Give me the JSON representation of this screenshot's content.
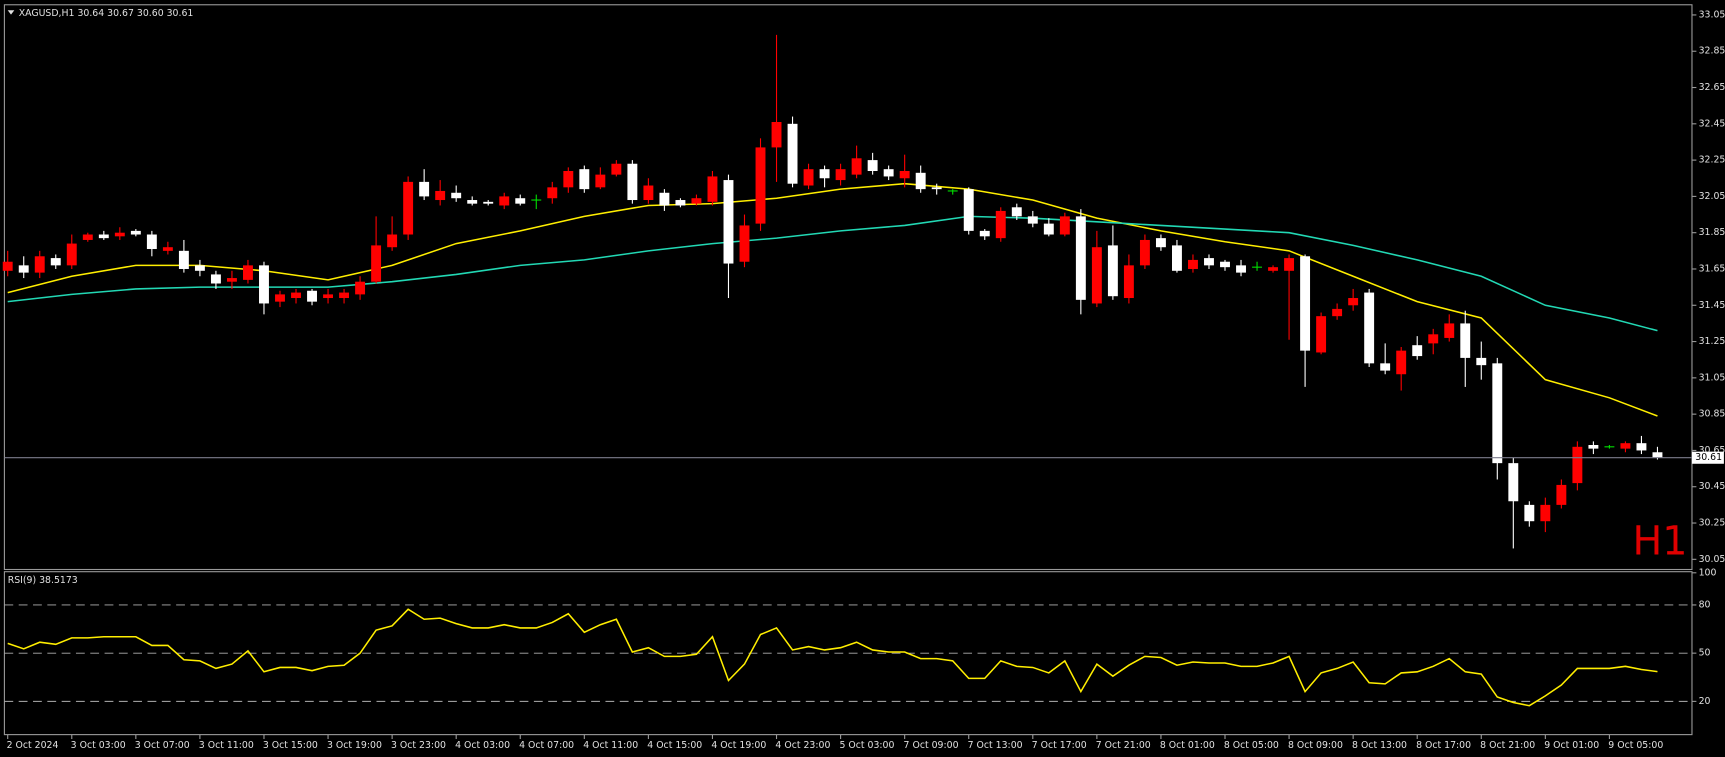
{
  "chart_data": {
    "type": "candlestick",
    "title": "XAGUSD,H1 30.64 30.67 30.60 30.61",
    "timeframe_label": "H1",
    "categories": [
      "2 Oct 2024",
      null,
      null,
      null,
      "3 Oct 03:00",
      null,
      null,
      null,
      "3 Oct 07:00",
      null,
      null,
      null,
      "3 Oct 11:00",
      null,
      null,
      null,
      "3 Oct 15:00",
      null,
      null,
      null,
      "3 Oct 19:00",
      null,
      null,
      null,
      "3 Oct 23:00",
      null,
      null,
      null,
      "4 Oct 03:00",
      null,
      null,
      null,
      "4 Oct 07:00",
      null,
      null,
      null,
      "4 Oct 11:00",
      null,
      null,
      null,
      "4 Oct 15:00",
      null,
      null,
      null,
      "4 Oct 19:00",
      null,
      null,
      null,
      "4 Oct 23:00",
      null,
      null,
      null,
      "5 Oct 03:00",
      null,
      null,
      null,
      "7 Oct 09:00",
      null,
      null,
      null,
      "7 Oct 13:00",
      null,
      null,
      null,
      "7 Oct 17:00",
      null,
      null,
      null,
      "7 Oct 21:00",
      null,
      null,
      null,
      "8 Oct 01:00",
      null,
      null,
      null,
      "8 Oct 05:00",
      null,
      null,
      null,
      "8 Oct 09:00",
      null,
      null,
      null,
      "8 Oct 13:00",
      null,
      null,
      null,
      "8 Oct 17:00",
      null,
      null,
      null,
      "8 Oct 21:00",
      null,
      null,
      null,
      "9 Oct 01:00",
      null,
      null,
      null,
      "9 Oct 05:00",
      null,
      null,
      null
    ],
    "open": [
      31.64,
      31.67,
      31.63,
      31.71,
      31.67,
      31.81,
      31.84,
      31.83,
      31.86,
      31.84,
      31.75,
      31.75,
      31.67,
      31.62,
      31.58,
      31.59,
      31.67,
      31.47,
      31.49,
      31.53,
      31.49,
      31.49,
      31.51,
      31.58,
      31.77,
      31.84,
      32.13,
      32.03,
      32.07,
      32.03,
      32.02,
      32.0,
      32.04,
      32.03,
      32.04,
      32.1,
      32.2,
      32.1,
      32.17,
      32.23,
      32.03,
      32.07,
      32.03,
      32.01,
      32.02,
      32.14,
      31.69,
      31.9,
      32.32,
      32.45,
      32.11,
      32.2,
      32.14,
      32.17,
      32.25,
      32.2,
      32.15,
      32.18,
      32.1,
      32.08,
      32.09,
      31.86,
      31.82,
      31.99,
      31.94,
      31.9,
      31.84,
      31.94,
      31.46,
      31.78,
      31.49,
      31.67,
      31.82,
      31.78,
      31.65,
      31.71,
      31.69,
      31.67,
      31.66,
      31.64,
      31.64,
      31.72,
      31.19,
      31.39,
      31.45,
      31.52,
      31.13,
      31.07,
      31.23,
      31.24,
      31.27,
      31.35,
      31.16,
      31.13,
      30.58,
      30.35,
      30.26,
      30.35,
      30.47,
      30.68,
      30.67,
      30.66,
      30.69,
      30.64
    ],
    "high": [
      31.75,
      31.72,
      31.75,
      31.73,
      31.84,
      31.85,
      31.86,
      31.88,
      31.87,
      31.86,
      31.8,
      31.81,
      31.7,
      31.64,
      31.64,
      31.7,
      31.69,
      31.53,
      31.54,
      31.54,
      31.54,
      31.54,
      31.61,
      31.94,
      31.94,
      32.16,
      32.2,
      32.14,
      32.11,
      32.05,
      32.03,
      32.07,
      32.06,
      32.06,
      32.13,
      32.21,
      32.22,
      32.21,
      32.25,
      32.25,
      32.15,
      32.09,
      32.04,
      32.06,
      32.19,
      32.17,
      31.95,
      32.37,
      32.94,
      32.49,
      32.23,
      32.22,
      32.23,
      32.33,
      32.29,
      32.22,
      32.28,
      32.22,
      32.12,
      32.09,
      32.1,
      31.87,
      31.99,
      32.01,
      31.97,
      31.93,
      31.96,
      31.98,
      31.86,
      31.89,
      31.73,
      31.84,
      31.84,
      31.81,
      31.73,
      31.73,
      31.7,
      31.7,
      31.69,
      31.67,
      31.73,
      31.73,
      31.41,
      31.46,
      31.54,
      31.54,
      31.24,
      31.22,
      31.28,
      31.32,
      31.4,
      31.42,
      31.25,
      31.16,
      30.61,
      30.37,
      30.39,
      30.49,
      30.7,
      30.7,
      30.68,
      30.7,
      30.73,
      30.67
    ],
    "low": [
      31.61,
      31.6,
      31.6,
      31.65,
      31.65,
      31.8,
      31.81,
      31.81,
      31.83,
      31.72,
      31.73,
      31.63,
      31.61,
      31.54,
      31.54,
      31.57,
      31.4,
      31.44,
      31.46,
      31.45,
      31.46,
      31.46,
      31.48,
      31.57,
      31.75,
      31.81,
      32.03,
      32.0,
      32.02,
      32.0,
      32.0,
      31.98,
      32.0,
      31.98,
      32.01,
      32.07,
      32.07,
      32.09,
      32.16,
      32.01,
      32.01,
      31.97,
      31.99,
      32.0,
      32.0,
      31.49,
      31.66,
      31.86,
      32.13,
      32.1,
      32.09,
      32.1,
      32.11,
      32.15,
      32.17,
      32.14,
      32.1,
      32.07,
      32.06,
      32.06,
      31.84,
      31.81,
      31.8,
      31.92,
      31.88,
      31.83,
      31.83,
      31.4,
      31.44,
      31.48,
      31.46,
      31.65,
      31.75,
      31.63,
      31.63,
      31.65,
      31.64,
      31.61,
      31.64,
      31.63,
      31.26,
      31.0,
      31.18,
      31.37,
      31.42,
      31.11,
      31.07,
      30.98,
      31.15,
      31.18,
      31.25,
      31.0,
      31.04,
      30.49,
      30.11,
      30.23,
      30.2,
      30.33,
      30.43,
      30.63,
      30.66,
      30.64,
      30.63,
      30.6
    ],
    "close": [
      31.69,
      31.63,
      31.72,
      31.67,
      31.79,
      31.84,
      31.82,
      31.85,
      31.84,
      31.76,
      31.77,
      31.65,
      31.64,
      31.57,
      31.6,
      31.67,
      31.46,
      31.51,
      31.52,
      31.47,
      31.51,
      31.52,
      31.58,
      31.78,
      31.84,
      32.13,
      32.05,
      32.08,
      32.04,
      32.01,
      32.01,
      32.05,
      32.01,
      32.03,
      32.1,
      32.19,
      32.09,
      32.17,
      32.23,
      32.03,
      32.11,
      32.0,
      32.0,
      32.04,
      32.16,
      31.68,
      31.89,
      32.32,
      32.46,
      32.12,
      32.2,
      32.15,
      32.2,
      32.26,
      32.19,
      32.16,
      32.19,
      32.09,
      32.09,
      32.08,
      31.86,
      31.83,
      31.97,
      31.94,
      31.9,
      31.84,
      31.94,
      31.48,
      31.77,
      31.5,
      31.67,
      31.81,
      31.77,
      31.64,
      31.7,
      31.67,
      31.66,
      31.63,
      31.66,
      31.66,
      31.71,
      31.2,
      31.39,
      31.43,
      31.49,
      31.13,
      31.09,
      31.2,
      31.17,
      31.29,
      31.35,
      31.16,
      31.12,
      30.58,
      30.37,
      30.26,
      30.35,
      30.46,
      30.67,
      30.66,
      30.67,
      30.69,
      30.65,
      30.61
    ],
    "up_color": "#ff0000",
    "down_color": "#ffffff",
    "doji_color": "#00e000",
    "ylim": [
      30.0,
      33.1
    ],
    "yticks": [
      30.05,
      30.25,
      30.45,
      30.65,
      30.85,
      31.05,
      31.25,
      31.45,
      31.65,
      31.85,
      32.05,
      32.25,
      32.45,
      32.65,
      32.85,
      33.05
    ],
    "last_price": 30.61,
    "last_price_color": "#7c7c8c",
    "overlays": [
      {
        "color": "#ffee00",
        "x": [
          0,
          4,
          8,
          12,
          16,
          20,
          24,
          28,
          32,
          36,
          40,
          44,
          48,
          52,
          56,
          60,
          64,
          68,
          72,
          76,
          80,
          84,
          88,
          92,
          96,
          100,
          103
        ],
        "values": [
          31.52,
          31.61,
          31.67,
          31.67,
          31.64,
          31.59,
          31.67,
          31.79,
          31.86,
          31.94,
          32.0,
          32.01,
          32.04,
          32.09,
          32.12,
          32.09,
          32.03,
          31.93,
          31.86,
          31.8,
          31.75,
          31.61,
          31.47,
          31.38,
          31.04,
          30.94,
          30.84
        ]
      },
      {
        "color": "#22d8b4",
        "x": [
          0,
          4,
          8,
          12,
          16,
          20,
          24,
          28,
          32,
          36,
          40,
          44,
          48,
          52,
          56,
          60,
          64,
          68,
          72,
          76,
          80,
          84,
          88,
          92,
          96,
          100,
          103
        ],
        "values": [
          31.47,
          31.51,
          31.54,
          31.55,
          31.55,
          31.55,
          31.58,
          31.62,
          31.67,
          31.7,
          31.75,
          31.79,
          31.82,
          31.86,
          31.89,
          31.94,
          31.93,
          31.91,
          31.89,
          31.87,
          31.85,
          31.78,
          31.7,
          31.61,
          31.45,
          31.38,
          31.31
        ]
      }
    ],
    "indicator": {
      "type": "line",
      "title": "RSI(9) 38.5173",
      "color": "#ffee00",
      "values": [
        56.1,
        52.7,
        56.8,
        55.5,
        59.5,
        59.5,
        60.2,
        60.2,
        60.2,
        54.8,
        54.8,
        45.9,
        45.2,
        40.5,
        43.2,
        51.4,
        38.4,
        41.1,
        41.1,
        39.1,
        41.8,
        42.5,
        50.0,
        64.3,
        67.0,
        77.3,
        71.1,
        71.8,
        68.4,
        65.7,
        65.7,
        67.7,
        65.7,
        65.7,
        69.1,
        74.5,
        63.0,
        67.7,
        71.1,
        50.7,
        53.4,
        48.0,
        48.0,
        49.3,
        60.2,
        33.0,
        43.2,
        61.6,
        65.7,
        52.0,
        54.1,
        52.0,
        53.4,
        56.8,
        52.0,
        50.7,
        50.7,
        46.6,
        46.6,
        45.2,
        34.3,
        34.3,
        45.2,
        41.8,
        41.1,
        37.7,
        45.2,
        26.1,
        43.2,
        35.7,
        42.5,
        48.0,
        47.3,
        42.5,
        44.5,
        43.9,
        43.9,
        41.8,
        41.8,
        43.9,
        48.0,
        26.1,
        37.7,
        40.5,
        44.5,
        31.6,
        30.9,
        37.7,
        38.4,
        41.8,
        46.6,
        38.4,
        37.0,
        22.7,
        19.3,
        17.3,
        23.4,
        30.2,
        40.5,
        40.5,
        40.5,
        41.8,
        39.8,
        38.52
      ],
      "ylim": [
        0,
        100
      ],
      "yticks": [
        20,
        50,
        80,
        100
      ],
      "levels": [
        20,
        50,
        80
      ]
    }
  }
}
